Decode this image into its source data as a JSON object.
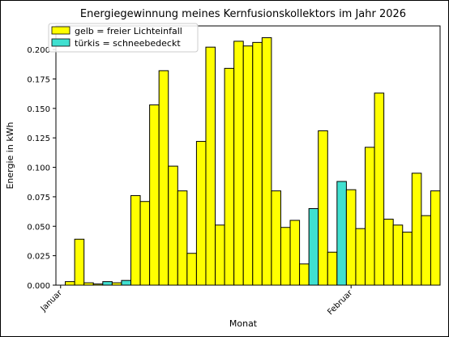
{
  "chart_data": {
    "type": "bar",
    "title": "Energiegewinnung meines Kernfusionskollektors im Jahr 2026",
    "xlabel": "Monat",
    "ylabel": "Energie in kWh",
    "ylim": [
      0,
      0.22
    ],
    "xlim": [
      -0.5,
      40.5
    ],
    "grid": false,
    "legend_position": "top-left",
    "colors": {
      "sunny": "#ffff00",
      "snow": "#40e0d0",
      "edge": "#000000"
    },
    "legend": [
      {
        "label": "gelb = freier Lichteinfall",
        "color": "#ffff00"
      },
      {
        "label": "türkis = schneebedeckt",
        "color": "#40e0d0"
      }
    ],
    "yticks": [
      {
        "value": 0.0,
        "label": "0.000"
      },
      {
        "value": 0.025,
        "label": "0.025"
      },
      {
        "value": 0.05,
        "label": "0.050"
      },
      {
        "value": 0.075,
        "label": "0.075"
      },
      {
        "value": 0.1,
        "label": "0.100"
      },
      {
        "value": 0.125,
        "label": "0.125"
      },
      {
        "value": 0.15,
        "label": "0.150"
      },
      {
        "value": 0.175,
        "label": "0.175"
      },
      {
        "value": 0.2,
        "label": "0.200"
      }
    ],
    "xticks": [
      {
        "value": 0,
        "label": "Januar"
      },
      {
        "value": 31,
        "label": "Februar"
      }
    ],
    "values": [
      0.0,
      0.003,
      0.039,
      0.002,
      0.001,
      0.003,
      0.002,
      0.004,
      0.076,
      0.071,
      0.153,
      0.182,
      0.101,
      0.08,
      0.027,
      0.122,
      0.202,
      0.051,
      0.184,
      0.207,
      0.203,
      0.206,
      0.21,
      0.08,
      0.049,
      0.055,
      0.018,
      0.065,
      0.131,
      0.028,
      0.088,
      0.081,
      0.048,
      0.117,
      0.163,
      0.056,
      0.051,
      0.045,
      0.095,
      0.059,
      0.08
    ],
    "snow_covered": [
      false,
      false,
      false,
      false,
      false,
      true,
      false,
      true,
      false,
      false,
      false,
      false,
      false,
      false,
      false,
      false,
      false,
      false,
      false,
      false,
      false,
      false,
      false,
      false,
      false,
      false,
      false,
      true,
      false,
      false,
      true,
      false,
      false,
      false,
      false,
      false,
      false,
      false,
      false,
      false,
      false
    ]
  }
}
